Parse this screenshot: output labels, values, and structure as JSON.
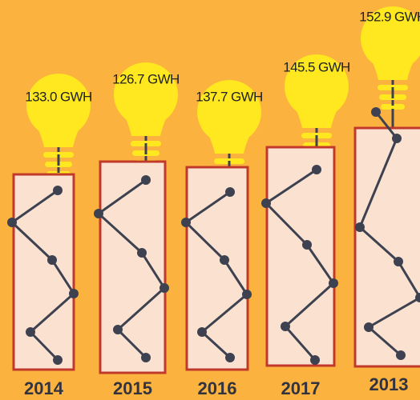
{
  "items": [
    {
      "year": "2014",
      "label": "133.0 GWH"
    },
    {
      "year": "2015",
      "label": "126.7 GWH"
    },
    {
      "year": "2016",
      "label": "137.7 GWH"
    },
    {
      "year": "2017",
      "label": "145.5 GWH"
    },
    {
      "year": "2013",
      "label": "152.9 GWH"
    }
  ]
}
